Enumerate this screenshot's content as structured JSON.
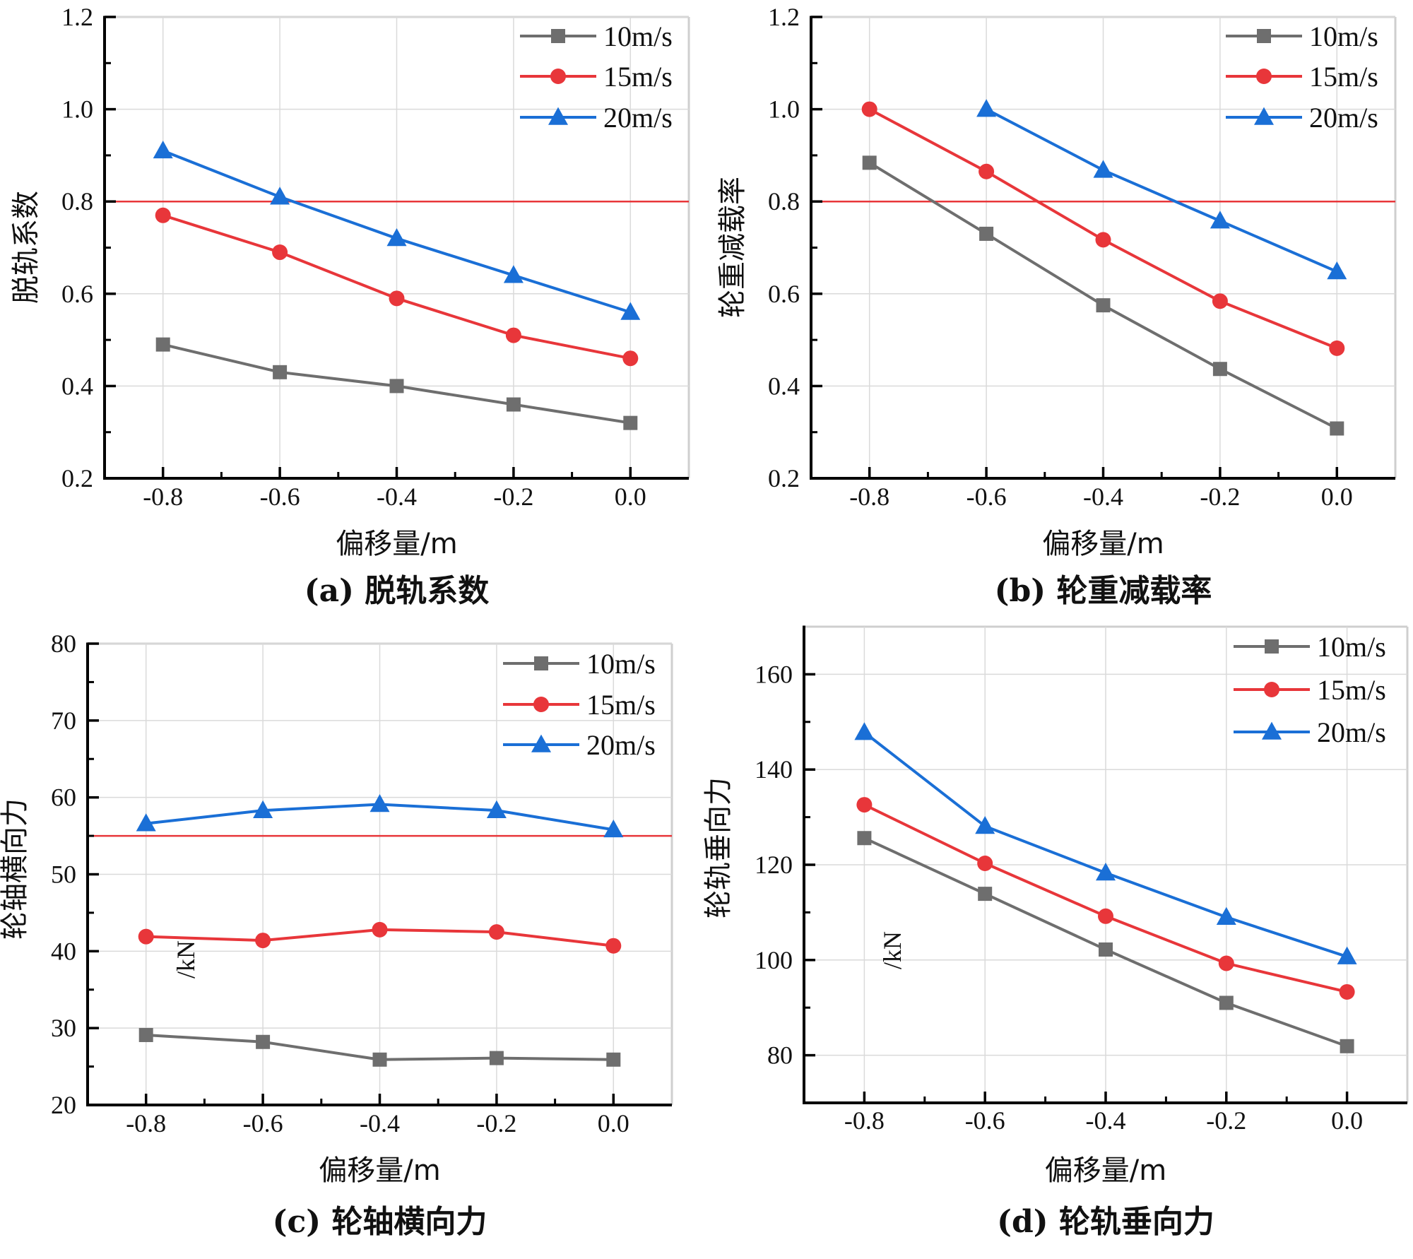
{
  "chart_data": [
    {
      "type": "line",
      "id": "a",
      "caption": "(a) 脱轨系数",
      "title": "",
      "xlabel": "偏移量/m",
      "ylabel": "脱轨系数",
      "x": [
        -0.8,
        -0.6,
        -0.4,
        -0.2,
        0.0
      ],
      "xlim": [
        -0.9,
        0.1
      ],
      "ylim": [
        0.2,
        1.2
      ],
      "xticks": [
        "-0.8",
        "-0.6",
        "-0.4",
        "-0.2",
        "0.0"
      ],
      "xtick_values": [
        -0.8,
        -0.6,
        -0.4,
        -0.2,
        0.0
      ],
      "yticks": [
        "0.2",
        "0.4",
        "0.6",
        "0.8",
        "1.0",
        "1.2"
      ],
      "ytick_values": [
        0.2,
        0.4,
        0.6,
        0.8,
        1.0,
        1.2
      ],
      "y_minor_step": 0.1,
      "x_minor_step": 0.1,
      "grid": true,
      "legend": "top-right",
      "threshold": {
        "value": 0.8,
        "color": "#e8363a"
      },
      "stray_label": "",
      "series": [
        {
          "name": "10m/s",
          "marker": "square",
          "color": "#6e6e6e",
          "values": [
            0.49,
            0.43,
            0.4,
            0.36,
            0.32
          ]
        },
        {
          "name": "15m/s",
          "marker": "circle",
          "color": "#e8363a",
          "values": [
            0.77,
            0.69,
            0.59,
            0.51,
            0.46
          ]
        },
        {
          "name": "20m/s",
          "marker": "triangle",
          "color": "#1a6fd6",
          "values": [
            0.91,
            0.81,
            0.72,
            0.64,
            0.56
          ]
        }
      ]
    },
    {
      "type": "line",
      "id": "b",
      "caption": "(b) 轮重减载率",
      "title": "",
      "xlabel": "偏移量/m",
      "ylabel": "轮重减载率",
      "x": [
        -0.8,
        -0.6,
        -0.4,
        -0.2,
        0.0
      ],
      "xlim": [
        -0.9,
        0.1
      ],
      "ylim": [
        0.2,
        1.2
      ],
      "xticks": [
        "-0.8",
        "-0.6",
        "-0.4",
        "-0.2",
        "0.0"
      ],
      "xtick_values": [
        -0.8,
        -0.6,
        -0.4,
        -0.2,
        0.0
      ],
      "yticks": [
        "0.2",
        "0.4",
        "0.6",
        "0.8",
        "1.0",
        "1.2"
      ],
      "ytick_values": [
        0.2,
        0.4,
        0.6,
        0.8,
        1.0,
        1.2
      ],
      "y_minor_step": 0.1,
      "x_minor_step": 0.1,
      "grid": true,
      "legend": "top-right",
      "threshold": {
        "value": 0.8,
        "color": "#e8363a"
      },
      "stray_label": "",
      "series": [
        {
          "name": "10m/s",
          "marker": "square",
          "color": "#6e6e6e",
          "values": [
            0.884,
            0.73,
            0.575,
            0.437,
            0.308
          ]
        },
        {
          "name": "15m/s",
          "marker": "circle",
          "color": "#e8363a",
          "values": [
            1.0,
            0.865,
            0.717,
            0.584,
            0.482
          ]
        },
        {
          "name": "20m/s",
          "marker": "triangle",
          "color": "#1a6fd6",
          "values": [
            null,
            1.0,
            0.868,
            0.758,
            0.648
          ]
        }
      ]
    },
    {
      "type": "line",
      "id": "c",
      "caption": "(c) 轮轴横向力",
      "title": "",
      "xlabel": "偏移量/m",
      "ylabel": "轮轴横向力",
      "x": [
        -0.8,
        -0.6,
        -0.4,
        -0.2,
        0.0
      ],
      "xlim": [
        -0.9,
        0.1
      ],
      "ylim": [
        20,
        80
      ],
      "xticks": [
        "-0.8",
        "-0.6",
        "-0.4",
        "-0.2",
        "0.0"
      ],
      "xtick_values": [
        -0.8,
        -0.6,
        -0.4,
        -0.2,
        0.0
      ],
      "yticks": [
        "20",
        "30",
        "40",
        "50",
        "60",
        "70",
        "80"
      ],
      "ytick_values": [
        20,
        30,
        40,
        50,
        60,
        70,
        80
      ],
      "y_minor_step": 5,
      "x_minor_step": 0.1,
      "grid": true,
      "legend": "top-right",
      "threshold": {
        "value": 55,
        "color": "#e8363a"
      },
      "stray_label": "/kN",
      "series": [
        {
          "name": "10m/s",
          "marker": "square",
          "color": "#6e6e6e",
          "values": [
            29.1,
            28.2,
            25.9,
            26.1,
            25.9
          ]
        },
        {
          "name": "15m/s",
          "marker": "circle",
          "color": "#e8363a",
          "values": [
            41.9,
            41.4,
            42.8,
            42.5,
            40.7
          ]
        },
        {
          "name": "20m/s",
          "marker": "triangle",
          "color": "#1a6fd6",
          "values": [
            56.6,
            58.3,
            59.1,
            58.3,
            55.8
          ]
        }
      ]
    },
    {
      "type": "line",
      "id": "d",
      "caption": "(d) 轮轨垂向力",
      "title": "",
      "xlabel": "偏移量/m",
      "ylabel": "轮轨垂向力",
      "x": [
        -0.8,
        -0.6,
        -0.4,
        -0.2,
        0.0
      ],
      "xlim": [
        -0.9,
        0.1
      ],
      "ylim": [
        70,
        170
      ],
      "xticks": [
        "-0.8",
        "-0.6",
        "-0.4",
        "-0.2",
        "0.0"
      ],
      "xtick_values": [
        -0.8,
        -0.6,
        -0.4,
        -0.2,
        0.0
      ],
      "yticks": [
        "80",
        "100",
        "120",
        "140",
        "160"
      ],
      "ytick_values": [
        80,
        100,
        120,
        140,
        160
      ],
      "y_minor_step": 10,
      "x_minor_step": 0.1,
      "grid": true,
      "legend": "top-right",
      "threshold": null,
      "stray_label": "/kN",
      "series": [
        {
          "name": "10m/s",
          "marker": "square",
          "color": "#6e6e6e",
          "values": [
            125.6,
            113.9,
            102.2,
            91.0,
            81.9
          ]
        },
        {
          "name": "15m/s",
          "marker": "circle",
          "color": "#e8363a",
          "values": [
            132.6,
            120.3,
            109.2,
            99.3,
            93.3
          ]
        },
        {
          "name": "20m/s",
          "marker": "triangle",
          "color": "#1a6fd6",
          "values": [
            147.8,
            128.1,
            118.3,
            109.0,
            100.7
          ]
        }
      ]
    }
  ]
}
